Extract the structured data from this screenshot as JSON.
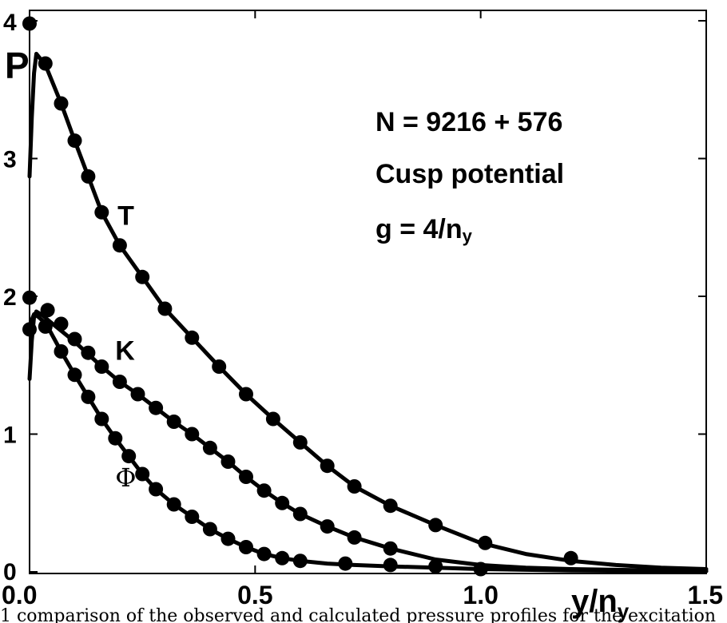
{
  "chart_data": {
    "type": "line",
    "ylabel": "P",
    "xlabel_main": "y/n",
    "xlabel_sub": "y",
    "xlim": [
      0.0,
      1.5
    ],
    "ylim": [
      0,
      4
    ],
    "x_ticks": [
      0.0,
      0.5,
      1.0,
      1.5
    ],
    "x_tick_labels": [
      "0.0",
      "0.5",
      "1.0",
      "1.5"
    ],
    "y_ticks": [
      0,
      1,
      2,
      3,
      4
    ],
    "y_tick_labels": [
      "0",
      "1",
      "2",
      "3",
      "4"
    ],
    "grid": false,
    "annotations": {
      "line1": "N = 9216 + 576",
      "line2": "Cusp potential",
      "line3_main": "g = 4/n",
      "line3_sub": "y"
    },
    "series": [
      {
        "name": "T",
        "curve_x": [
          0.0,
          0.005,
          0.01,
          0.015,
          0.02,
          0.03,
          0.04,
          0.07,
          0.1,
          0.13,
          0.16,
          0.2,
          0.25,
          0.3,
          0.36,
          0.42,
          0.48,
          0.54,
          0.6,
          0.66,
          0.72,
          0.8,
          0.9,
          1.0,
          1.1,
          1.2,
          1.3,
          1.4,
          1.5
        ],
        "curve_y": [
          2.87,
          3.3,
          3.62,
          3.76,
          3.74,
          3.7,
          3.64,
          3.4,
          3.13,
          2.87,
          2.61,
          2.37,
          2.14,
          1.91,
          1.7,
          1.49,
          1.29,
          1.11,
          0.94,
          0.77,
          0.62,
          0.48,
          0.34,
          0.21,
          0.13,
          0.08,
          0.05,
          0.03,
          0.02
        ],
        "points_x": [
          0.0,
          0.035,
          0.07,
          0.1,
          0.13,
          0.16,
          0.2,
          0.25,
          0.3,
          0.36,
          0.42,
          0.48,
          0.54,
          0.6,
          0.66,
          0.72,
          0.8,
          0.9,
          1.01,
          1.2
        ],
        "points_y": [
          3.98,
          3.69,
          3.4,
          3.13,
          2.87,
          2.61,
          2.37,
          2.14,
          1.91,
          1.7,
          1.49,
          1.29,
          1.11,
          0.94,
          0.77,
          0.62,
          0.48,
          0.34,
          0.21,
          0.1
        ],
        "label": "T",
        "label_pos": [
          0.195,
          2.52
        ]
      },
      {
        "name": "K",
        "curve_x": [
          0.0,
          0.005,
          0.01,
          0.015,
          0.02,
          0.03,
          0.04,
          0.07,
          0.1,
          0.13,
          0.16,
          0.2,
          0.24,
          0.28,
          0.32,
          0.36,
          0.4,
          0.44,
          0.48,
          0.52,
          0.56,
          0.6,
          0.66,
          0.72,
          0.8,
          0.9,
          1.0,
          1.1,
          1.2,
          1.3,
          1.4,
          1.5
        ],
        "curve_y": [
          1.4,
          1.68,
          1.85,
          1.89,
          1.88,
          1.86,
          1.83,
          1.75,
          1.67,
          1.58,
          1.49,
          1.38,
          1.29,
          1.19,
          1.09,
          1.0,
          0.9,
          0.8,
          0.69,
          0.59,
          0.5,
          0.42,
          0.33,
          0.25,
          0.17,
          0.09,
          0.05,
          0.03,
          0.02,
          0.015,
          0.01,
          0.005
        ],
        "points_x": [
          0.0,
          0.04,
          0.07,
          0.1,
          0.13,
          0.16,
          0.2,
          0.24,
          0.28,
          0.32,
          0.36,
          0.4,
          0.44,
          0.48,
          0.52,
          0.56,
          0.6,
          0.66,
          0.72,
          0.8
        ],
        "points_y": [
          1.99,
          1.9,
          1.8,
          1.69,
          1.59,
          1.49,
          1.38,
          1.29,
          1.19,
          1.09,
          1.0,
          0.9,
          0.8,
          0.69,
          0.59,
          0.5,
          0.42,
          0.33,
          0.25,
          0.17
        ],
        "label": "K",
        "label_pos": [
          0.19,
          1.54
        ]
      },
      {
        "name": "Φ",
        "curve_x": [
          0.0,
          0.005,
          0.01,
          0.015,
          0.02,
          0.03,
          0.04,
          0.07,
          0.1,
          0.13,
          0.16,
          0.19,
          0.22,
          0.25,
          0.28,
          0.32,
          0.36,
          0.4,
          0.44,
          0.48,
          0.52,
          0.56,
          0.6,
          0.66,
          0.72,
          0.8,
          0.9,
          1.0,
          1.1,
          1.2,
          1.3,
          1.4,
          1.5
        ],
        "curve_y": [
          1.76,
          1.83,
          1.87,
          1.86,
          1.85,
          1.82,
          1.78,
          1.6,
          1.43,
          1.27,
          1.11,
          0.97,
          0.84,
          0.71,
          0.6,
          0.49,
          0.4,
          0.31,
          0.24,
          0.18,
          0.13,
          0.1,
          0.08,
          0.06,
          0.05,
          0.04,
          0.03,
          0.02,
          0.015,
          0.01,
          0.008,
          0.006,
          0.005
        ],
        "points_x": [
          0.0,
          0.035,
          0.07,
          0.1,
          0.13,
          0.16,
          0.19,
          0.22,
          0.25,
          0.28,
          0.32,
          0.36,
          0.4,
          0.44,
          0.48,
          0.52,
          0.56,
          0.6,
          0.7,
          0.8,
          0.9,
          1.0
        ],
        "points_y": [
          1.76,
          1.78,
          1.6,
          1.43,
          1.27,
          1.11,
          0.97,
          0.84,
          0.71,
          0.6,
          0.49,
          0.4,
          0.31,
          0.24,
          0.18,
          0.13,
          0.1,
          0.08,
          0.06,
          0.05,
          0.04,
          0.02
        ],
        "label": "Φ",
        "label_pos": [
          0.19,
          0.62
        ]
      }
    ]
  },
  "caption": "1  comparison of the observed and calculated pressure profiles for the excitation"
}
